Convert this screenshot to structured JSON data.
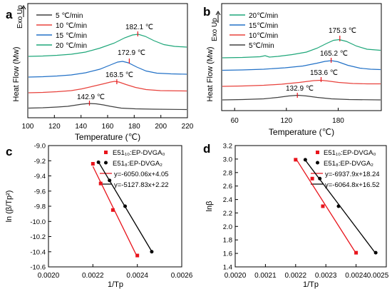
{
  "chart_data": [
    {
      "type": "line",
      "panel_label": "a",
      "xlabel": "Temperature (℃)",
      "ylabel": "Heat Flow (Mw)",
      "exo_label": "Exo Up",
      "xlim": [
        100,
        220
      ],
      "xticks": [
        "100",
        "120",
        "140",
        "160",
        "180",
        "200",
        "220"
      ],
      "series": [
        {
          "name": "5 ℃/min",
          "color": "#404040",
          "peak_x": 142.9,
          "peak_label": "142.9 ℃"
        },
        {
          "name": "10 ℃/min",
          "color": "#e8423c",
          "peak_x": 163.5,
          "peak_label": "163.5 ℃"
        },
        {
          "name": "15 ℃/min",
          "color": "#2271c7",
          "peak_x": 172.9,
          "peak_label": "172.9 ℃"
        },
        {
          "name": "20 ℃/min",
          "color": "#1fa77a",
          "peak_x": 182.1,
          "peak_label": "182.1 ℃"
        }
      ]
    },
    {
      "type": "line",
      "panel_label": "b",
      "xlabel": "Temperature (℃)",
      "ylabel": "Heat Flow (Mw)",
      "exo_label": "Exo Up",
      "xlim": [
        45,
        230
      ],
      "xticks": [
        "60",
        "120",
        "180"
      ],
      "series": [
        {
          "name": "20℃/min",
          "color": "#1fa77a",
          "peak_x": 175.3,
          "peak_label": "175.3 ℃"
        },
        {
          "name": "15℃/min",
          "color": "#2271c7",
          "peak_x": 165.2,
          "peak_label": "165.2 ℃"
        },
        {
          "name": "10℃/min",
          "color": "#e8423c",
          "peak_x": 153.6,
          "peak_label": "153.6 ℃"
        },
        {
          "name": "5℃/min",
          "color": "#404040",
          "peak_x": 132.9,
          "peak_label": "132.9 ℃"
        }
      ]
    },
    {
      "type": "scatter",
      "panel_label": "c",
      "xlabel": "1/Tp",
      "ylabel": "ln (β/Tp²)",
      "xlim": [
        0.002,
        0.0026
      ],
      "ylim": [
        -10.6,
        -9.0
      ],
      "xticks": [
        "0.0020",
        "0.0022",
        "0.0024",
        "0.0026"
      ],
      "yticks": [
        "-9.0",
        "-9.2",
        "-9.4",
        "-9.6",
        "-9.8",
        "-10.0",
        "-10.2",
        "-10.4",
        "-10.6"
      ],
      "series": [
        {
          "name": "E51₁₀:EP-DVGA₀",
          "color": "#e8141c",
          "marker": "square",
          "x": [
            0.0022,
            0.002235,
            0.00229,
            0.0024
          ],
          "y": [
            -9.24,
            -9.5,
            -9.85,
            -10.45
          ],
          "fit_label": "y=-6050.06x+4.05"
        },
        {
          "name": "E51₈:EP-DVGA₂",
          "color": "#000000",
          "marker": "circle",
          "x": [
            0.002225,
            0.002275,
            0.002345,
            0.002465
          ],
          "y": [
            -9.22,
            -9.46,
            -9.8,
            -10.4
          ],
          "fit_label": "y=-5127.83x+2.22"
        }
      ]
    },
    {
      "type": "scatter",
      "panel_label": "d",
      "xlabel": "1/Tp",
      "ylabel": "lnβ",
      "xlim": [
        0.002,
        0.0025
      ],
      "ylim": [
        1.4,
        3.2
      ],
      "xticks": [
        "0.0020",
        "0.0021",
        "0.0022",
        "0.0023",
        "0.0024",
        "0.0025"
      ],
      "yticks": [
        "1.4",
        "1.6",
        "1.8",
        "2.0",
        "2.2",
        "2.4",
        "2.6",
        "2.8",
        "3.0",
        "3.2"
      ],
      "series": [
        {
          "name": "E51₁₀:EP-DVGA₀",
          "color": "#e8141c",
          "marker": "square",
          "x": [
            0.0022,
            0.002255,
            0.00229,
            0.0024
          ],
          "y": [
            2.99,
            2.71,
            2.3,
            1.61
          ],
          "fit_label": "y=-6937.9x+18.24"
        },
        {
          "name": "E51₈:EP-DVGA₂",
          "color": "#000000",
          "marker": "circle",
          "x": [
            0.002232,
            0.00228,
            0.002342,
            0.002465
          ],
          "y": [
            2.99,
            2.71,
            2.3,
            1.61
          ],
          "fit_label": "y=-6064.8x+16.52"
        }
      ]
    }
  ]
}
